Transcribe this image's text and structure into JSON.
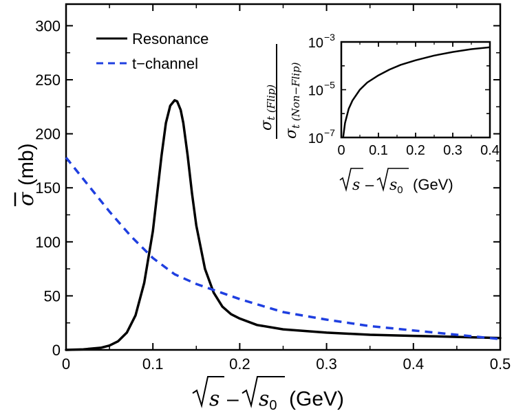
{
  "chart_data": [
    {
      "type": "line",
      "title": "",
      "xlabel": "√s − √s₀ (GeV)",
      "ylabel": "σ̄ (mb)",
      "xlim": [
        0,
        0.5
      ],
      "ylim": [
        0,
        320
      ],
      "x_ticks": [
        "0",
        "0.1",
        "0.2",
        "0.3",
        "0.4",
        "0.5"
      ],
      "y_ticks": [
        "0",
        "50",
        "100",
        "150",
        "200",
        "250",
        "300"
      ],
      "legend_position": "top-left",
      "grid": false,
      "series": [
        {
          "name": "Resonance",
          "color": "#000000",
          "style": "solid",
          "x": [
            0,
            0.02,
            0.04,
            0.05,
            0.06,
            0.07,
            0.08,
            0.09,
            0.1,
            0.105,
            0.11,
            0.115,
            0.12,
            0.125,
            0.128,
            0.132,
            0.135,
            0.14,
            0.145,
            0.15,
            0.16,
            0.17,
            0.18,
            0.19,
            0.2,
            0.22,
            0.25,
            0.3,
            0.35,
            0.4,
            0.45,
            0.5
          ],
          "y": [
            0,
            0.5,
            2,
            4,
            8,
            16,
            32,
            62,
            110,
            145,
            180,
            210,
            226,
            231,
            230,
            222,
            210,
            180,
            145,
            115,
            75,
            53,
            40,
            33,
            29,
            23,
            19,
            16,
            14,
            13,
            12,
            11
          ]
        },
        {
          "name": "t−channel",
          "color": "#1f3fe0",
          "style": "dashed",
          "x": [
            0,
            0.025,
            0.05,
            0.075,
            0.1,
            0.125,
            0.15,
            0.175,
            0.2,
            0.225,
            0.25,
            0.3,
            0.35,
            0.4,
            0.45,
            0.5
          ],
          "y": [
            178,
            153,
            128,
            105,
            85,
            70,
            61,
            54,
            47,
            41,
            35,
            28,
            22,
            18,
            14,
            10
          ]
        }
      ]
    },
    {
      "type": "line",
      "title": "",
      "xlabel": "√s − √s₀ (GeV)",
      "ylabel": "σt(Flip) / σt(Non−Flip)",
      "ylabel_num": "σ",
      "ylabel_num_sub": "t (Flip)",
      "ylabel_den": "σ",
      "ylabel_den_sub": "t (Non−Flip)",
      "xlim": [
        0,
        0.4
      ],
      "ylim": [
        1e-07,
        0.001
      ],
      "yscale": "log",
      "x_ticks": [
        "0",
        "0.1",
        "0.2",
        "0.3",
        "0.4"
      ],
      "y_ticks": [
        {
          "base": "10",
          "exp": "−3",
          "value": 0.001
        },
        {
          "base": "10",
          "exp": "−5",
          "value": 1e-05
        },
        {
          "base": "10",
          "exp": "−7",
          "value": 1e-07
        }
      ],
      "grid": false,
      "series": [
        {
          "color": "#000000",
          "style": "solid",
          "x": [
            0.005,
            0.01,
            0.02,
            0.03,
            0.05,
            0.07,
            0.1,
            0.13,
            0.16,
            0.2,
            0.25,
            0.3,
            0.35,
            0.4
          ],
          "y": [
            1e-07,
            4e-07,
            1.6e-06,
            3.5e-06,
            1e-05,
            2e-05,
            4e-05,
            7e-05,
            0.00011,
            0.00017,
            0.00027,
            0.00038,
            0.0005,
            0.0006
          ]
        }
      ]
    }
  ]
}
